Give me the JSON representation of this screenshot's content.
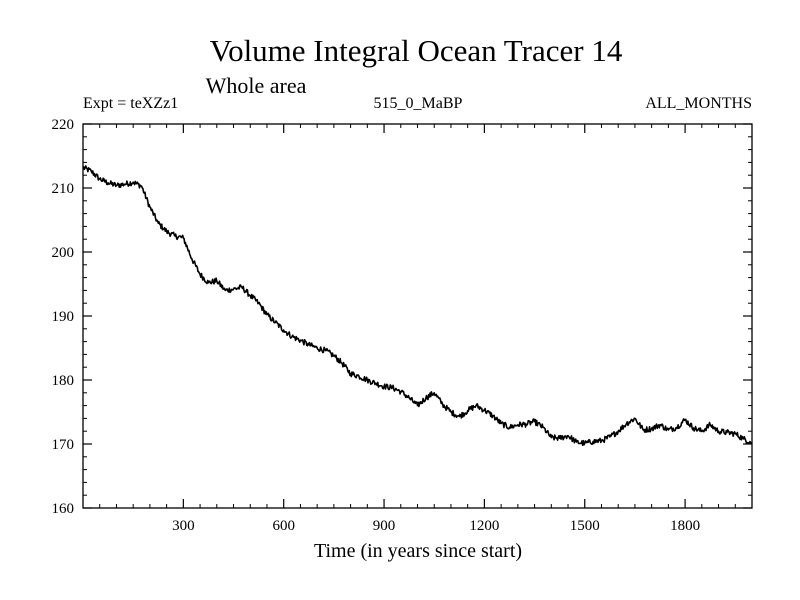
{
  "chart_data": {
    "type": "line",
    "title": "Volume Integral Ocean Tracer 14",
    "subtitle": "Whole area",
    "experiment_label": "Expt = teXZz1",
    "center_label": "515_0_MaBP",
    "right_label": "ALL_MONTHS",
    "xlabel": "Time (in years since start)",
    "ylabel": "",
    "xlim": [
      0,
      2000
    ],
    "ylim": [
      160,
      220
    ],
    "x_ticks": [
      300,
      600,
      900,
      1200,
      1500,
      1800
    ],
    "x_tick_labels": [
      "300",
      "600",
      "900",
      "1200",
      "1500",
      "1800"
    ],
    "y_ticks": [
      160,
      170,
      180,
      190,
      200,
      210,
      220
    ],
    "y_tick_labels": [
      "160",
      "170",
      "180",
      "190",
      "200",
      "210",
      "220"
    ],
    "x_minor_step": 50,
    "y_minor_step": 2,
    "grid": false,
    "series": [
      {
        "name": "Tracer 14",
        "color": "#000000",
        "x": [
          0,
          25,
          50,
          75,
          100,
          125,
          150,
          175,
          200,
          225,
          250,
          275,
          300,
          325,
          350,
          375,
          400,
          425,
          450,
          475,
          500,
          525,
          550,
          575,
          600,
          625,
          650,
          675,
          700,
          725,
          750,
          775,
          800,
          825,
          850,
          875,
          900,
          925,
          950,
          975,
          1000,
          1025,
          1050,
          1075,
          1100,
          1125,
          1150,
          1175,
          1200,
          1225,
          1250,
          1275,
          1300,
          1325,
          1350,
          1375,
          1400,
          1425,
          1450,
          1475,
          1500,
          1525,
          1550,
          1575,
          1600,
          1625,
          1650,
          1675,
          1700,
          1725,
          1750,
          1775,
          1800,
          1825,
          1850,
          1875,
          1900,
          1925,
          1950,
          1975,
          2000
        ],
        "y": [
          213.2,
          212.6,
          211.4,
          210.8,
          210.4,
          210.6,
          210.9,
          210.3,
          207.0,
          204.5,
          203.2,
          202.5,
          202.2,
          199.0,
          196.5,
          195.2,
          195.5,
          194.0,
          194.2,
          194.5,
          193.2,
          192.0,
          190.2,
          189.0,
          187.8,
          186.8,
          186.2,
          185.5,
          185.0,
          184.6,
          183.8,
          182.6,
          181.0,
          180.6,
          180.0,
          179.5,
          179.0,
          178.8,
          178.2,
          177.2,
          176.0,
          177.2,
          178.0,
          176.2,
          175.0,
          174.3,
          175.2,
          176.0,
          175.3,
          174.4,
          173.2,
          172.6,
          173.0,
          173.1,
          173.5,
          172.6,
          171.0,
          170.9,
          171.3,
          170.3,
          170.1,
          170.4,
          170.5,
          171.1,
          172.0,
          173.2,
          174.0,
          172.2,
          172.4,
          173.0,
          172.2,
          172.6,
          173.8,
          172.5,
          172.0,
          173.0,
          172.0,
          171.8,
          171.6,
          170.8,
          170.2
        ]
      }
    ]
  }
}
